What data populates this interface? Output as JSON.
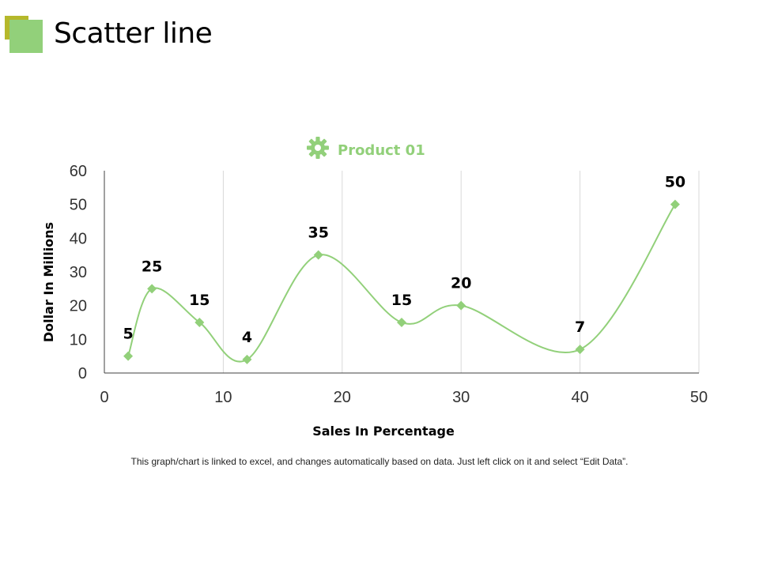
{
  "slide": {
    "title": "Scatter line",
    "footnote": "This graph/chart is linked to excel, and changes automatically based on data. Just left click on it and select “Edit Data”."
  },
  "colors": {
    "series": "#92d07a",
    "accent_dark": "#b5b82b",
    "axis": "#404040",
    "grid": "#d9d9d9",
    "text": "#000000"
  },
  "chart_data": {
    "type": "scatter",
    "title": "",
    "xlabel": "Sales In Percentage",
    "ylabel": "Dollar In Millions",
    "xlim": [
      0,
      50
    ],
    "ylim": [
      0,
      60
    ],
    "xticks": [
      0,
      10,
      20,
      30,
      40,
      50
    ],
    "yticks": [
      0,
      10,
      20,
      30,
      40,
      50,
      60
    ],
    "grid": "vertical",
    "legend_position": "top-center",
    "smooth_line": true,
    "series": [
      {
        "name": "Product 01",
        "icon": "gear-icon",
        "x": [
          2,
          4,
          8,
          12,
          18,
          25,
          30,
          40,
          48
        ],
        "y": [
          5,
          25,
          15,
          4,
          35,
          15,
          20,
          7,
          50
        ],
        "labels": [
          "5",
          "25",
          "15",
          "4",
          "35",
          "15",
          "20",
          "7",
          "50"
        ]
      }
    ]
  }
}
